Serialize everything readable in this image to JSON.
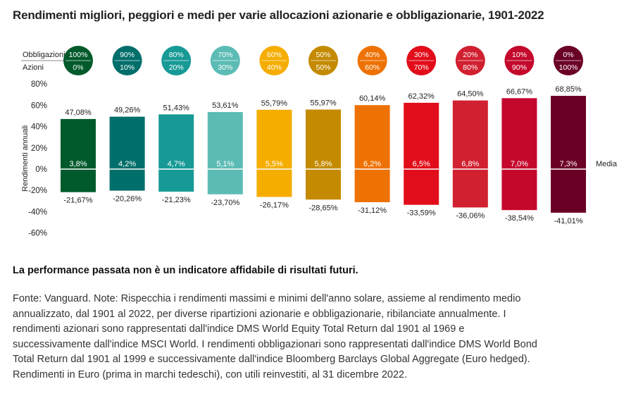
{
  "title": "Rendimenti migliori, peggiori e medi per varie allocazioni azionarie e obbligazionarie, 1901-2022",
  "disclaimer": "La performance passata non è un indicatore affidabile di risultati futuri.",
  "notes_lines": [
    "Fonte: Vanguard. Note: Rispecchia i rendimenti massimi e minimi dell'anno solare, assieme al rendimento medio",
    "annualizzato, dal 1901 al 2022, per diverse ripartizioni azionarie e obbligazionarie, ribilanciate annualmente. I",
    "rendimenti azionari sono rappresentati dall'indice DMS World Equity Total Return dal 1901 al 1969 e",
    "successivamente dall'indice MSCI World. I rendimenti obbligazionari sono rappresentati dall'indice DMS World Bond",
    "Total Return dal 1901 al 1999 e successivamente dall'indice Bloomberg Barclays Global Aggregate (Euro hedged).",
    "Rendimenti in Euro (prima in marchi tedeschi), con utili reinvestiti, al 31 dicembre 2022."
  ],
  "chart_data": {
    "type": "bar",
    "ylabel": "Rendimenti annuali",
    "ylim": [
      -60,
      80
    ],
    "yticks": [
      80,
      60,
      40,
      20,
      0,
      -20,
      -40,
      -60
    ],
    "ytick_labels": [
      "80%",
      "60%",
      "40%",
      "20%",
      "0%",
      "-20%",
      "-40%",
      "-60%"
    ],
    "allocation_labels": {
      "bonds": "Obbligazioni",
      "stocks": "Azioni"
    },
    "mean_label": "Media",
    "categories": [
      {
        "bonds": "100%",
        "stocks": "0%",
        "max": 47.08,
        "min": -21.67,
        "mean": 3.8,
        "max_label": "47,08%",
        "min_label": "-21,67%",
        "mean_label": "3,8%",
        "color": "#005a2b"
      },
      {
        "bonds": "90%",
        "stocks": "10%",
        "max": 49.26,
        "min": -20.26,
        "mean": 4.2,
        "max_label": "49,26%",
        "min_label": "-20,26%",
        "mean_label": "4,2%",
        "color": "#006e6a"
      },
      {
        "bonds": "80%",
        "stocks": "20%",
        "max": 51.43,
        "min": -21.23,
        "mean": 4.7,
        "max_label": "51,43%",
        "min_label": "-21,23%",
        "mean_label": "4,7%",
        "color": "#179a96"
      },
      {
        "bonds": "70%",
        "stocks": "30%",
        "max": 53.61,
        "min": -23.7,
        "mean": 5.1,
        "max_label": "53,61%",
        "min_label": "-23,70%",
        "mean_label": "5,1%",
        "color": "#5cbcb5"
      },
      {
        "bonds": "60%",
        "stocks": "40%",
        "max": 55.79,
        "min": -26.17,
        "mean": 5.5,
        "max_label": "55,79%",
        "min_label": "-26,17%",
        "mean_label": "5,5%",
        "color": "#f5ad00"
      },
      {
        "bonds": "50%",
        "stocks": "50%",
        "max": 55.97,
        "min": -28.65,
        "mean": 5.8,
        "max_label": "55,97%",
        "min_label": "-28,65%",
        "mean_label": "5,8%",
        "color": "#c48a00"
      },
      {
        "bonds": "40%",
        "stocks": "60%",
        "max": 60.14,
        "min": -31.12,
        "mean": 6.2,
        "max_label": "60,14%",
        "min_label": "-31,12%",
        "mean_label": "6,2%",
        "color": "#ee7203"
      },
      {
        "bonds": "30%",
        "stocks": "70%",
        "max": 62.32,
        "min": -33.59,
        "mean": 6.5,
        "max_label": "62,32%",
        "min_label": "-33,59%",
        "mean_label": "6,5%",
        "color": "#e20d1a"
      },
      {
        "bonds": "20%",
        "stocks": "80%",
        "max": 64.5,
        "min": -36.06,
        "mean": 6.8,
        "max_label": "64,50%",
        "min_label": "-36,06%",
        "mean_label": "6,8%",
        "color": "#d12030"
      },
      {
        "bonds": "10%",
        "stocks": "90%",
        "max": 66.67,
        "min": -38.54,
        "mean": 7.0,
        "max_label": "66,67%",
        "min_label": "-38,54%",
        "mean_label": "7,0%",
        "color": "#c4082c"
      },
      {
        "bonds": "0%",
        "stocks": "100%",
        "max": 68.85,
        "min": -41.01,
        "mean": 7.3,
        "max_label": "68,85%",
        "min_label": "-41,01%",
        "mean_label": "7,3%",
        "color": "#6b0027"
      }
    ]
  }
}
